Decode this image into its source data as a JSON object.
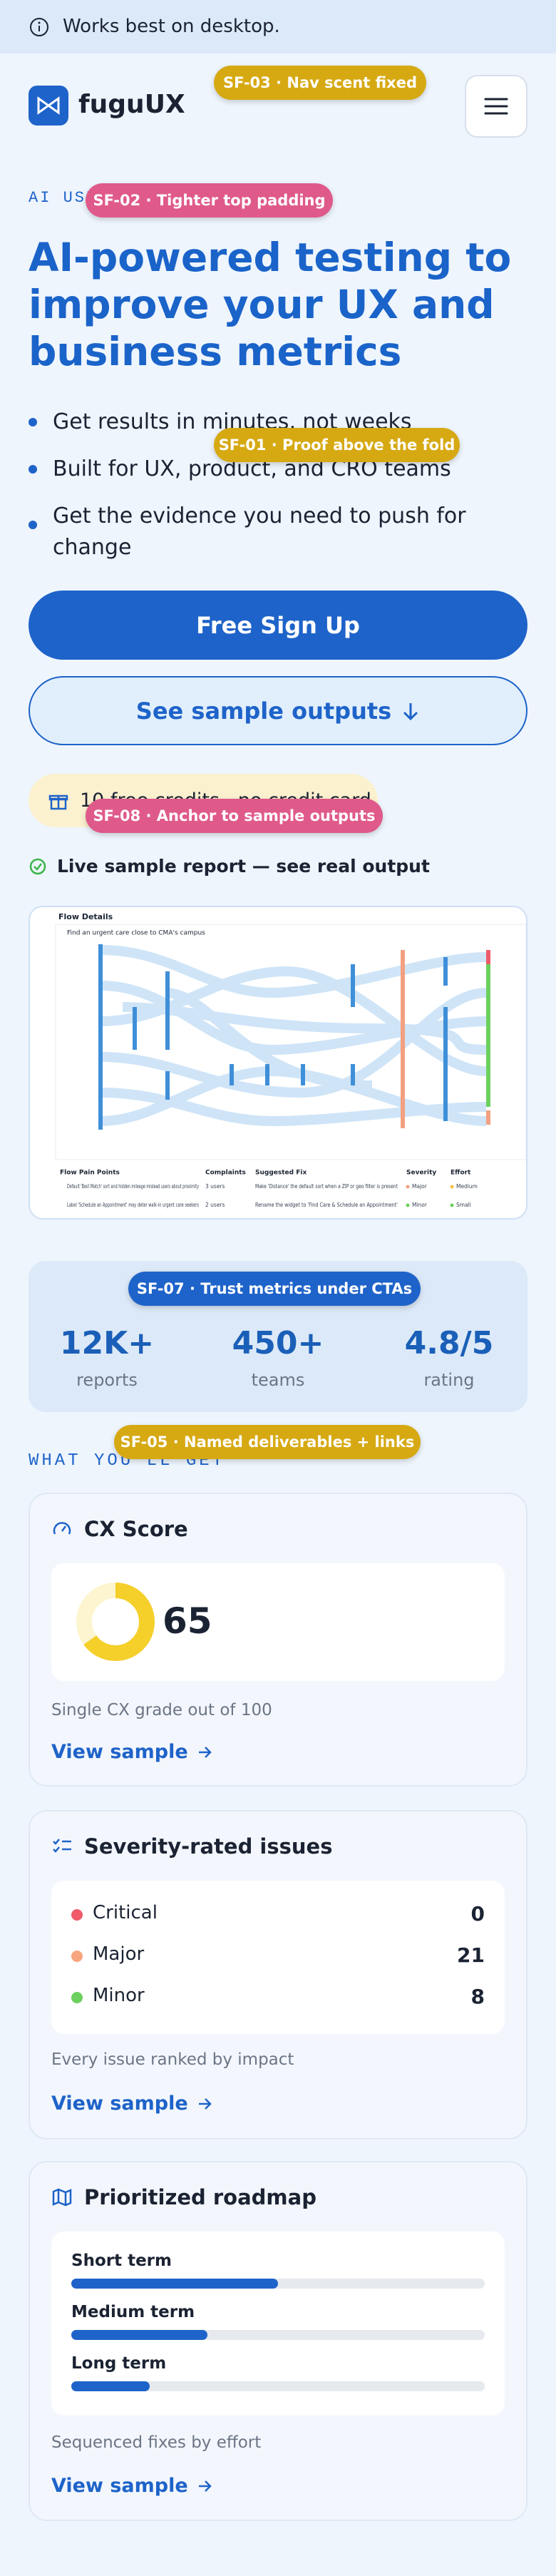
{
  "banner": "Works best on desktop.",
  "header": {
    "logo": "fuguUX"
  },
  "badges": [
    "SF-03 · Nav scent fixed",
    "SF-02 · Tighter top padding",
    "SF-01 · Proof above the fold",
    "SF-08 · Anchor to sample outputs",
    "SF-07 · Trust metrics under CTAs",
    "SF-05 · Named deliverables + links"
  ],
  "hero": {
    "eyebrow": "AI USER TESTING IN MINUTES",
    "title": "AI-powered testing to improve your UX and business metrics",
    "bullets": [
      "Get results in minutes, not weeks",
      "Built for UX, product, and CRO teams",
      "Get the evidence you need to push for change"
    ],
    "primary_cta": "Free Sign Up",
    "secondary_cta": "See sample outputs",
    "credits": "10 free credits · no credit card",
    "live_label": "Live sample report — see real output"
  },
  "report": {
    "title": "Flow Details",
    "task": "Find an urgent care close to CMA's campus",
    "table": {
      "headers": [
        "Flow Pain Points",
        "Complaints",
        "Suggested Fix",
        "Severity",
        "Effort"
      ],
      "rows": [
        [
          "Default 'Best Match' sort and hidden mileage mislead users about proximity",
          "3 users",
          "Make 'Distance' the default sort when a ZIP or geo filter is present",
          "Major",
          "Medium"
        ],
        [
          "Label 'Schedule an Appointment' may deter walk-in urgent care seekers",
          "2 users",
          "Rename the widget to 'Find Care & Schedule an Appointment'",
          "Minor",
          "Small"
        ]
      ]
    }
  },
  "stats": [
    {
      "value": "12K+",
      "label": "reports"
    },
    {
      "value": "450+",
      "label": "teams"
    },
    {
      "value": "4.8/5",
      "label": "rating"
    }
  ],
  "section_label": "WHAT YOU'LL GET",
  "cards": [
    {
      "title": "CX Score",
      "score": 65,
      "caption": "Single CX grade out of 100",
      "link": "View sample"
    },
    {
      "title": "Severity-rated issues",
      "issues": [
        {
          "name": "Critical",
          "count": 0,
          "color": "#ef5b6b"
        },
        {
          "name": "Major",
          "count": 21,
          "color": "#f6a57e"
        },
        {
          "name": "Minor",
          "count": 8,
          "color": "#6cd05e"
        }
      ],
      "caption": "Every issue ranked by impact",
      "link": "View sample"
    },
    {
      "title": "Prioritized roadmap",
      "terms": [
        {
          "name": "Short term",
          "progress": 50
        },
        {
          "name": "Medium term",
          "progress": 33
        },
        {
          "name": "Long term",
          "progress": 19
        }
      ],
      "caption": "Sequenced fixes by effort",
      "link": "View sample"
    }
  ]
}
